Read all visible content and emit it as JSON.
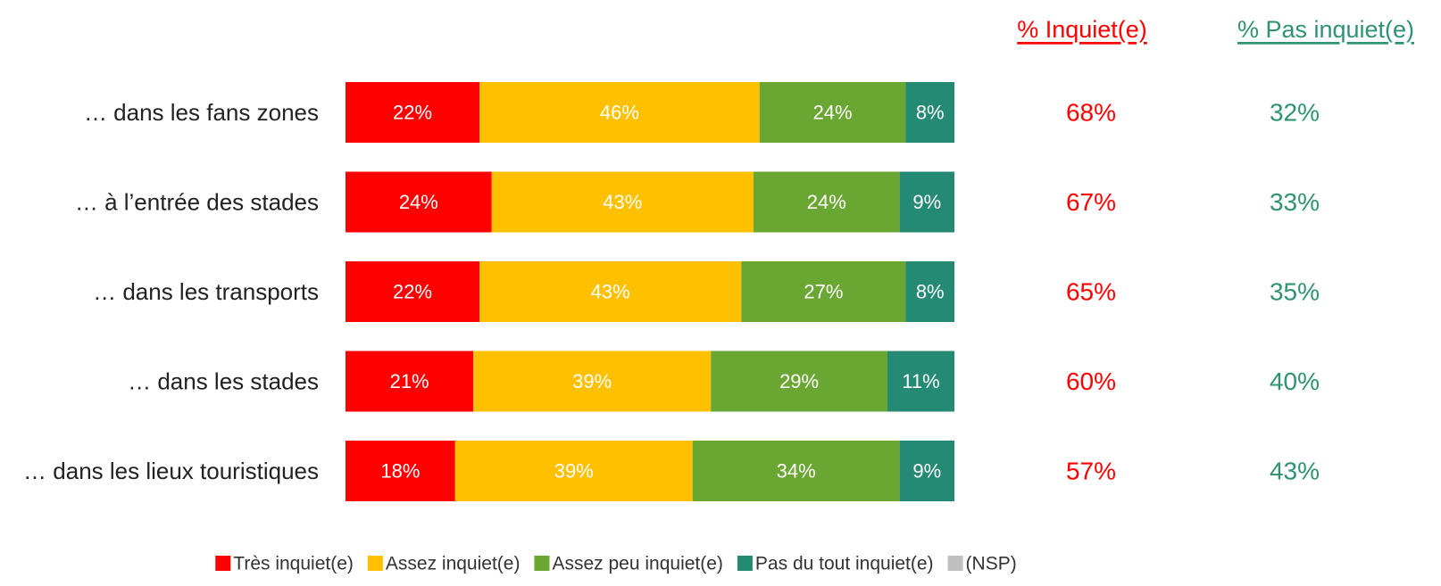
{
  "chart_data": {
    "type": "stacked-barh",
    "categories": [
      "… dans les fans zones",
      "… à l’entrée des stades",
      "… dans les transports",
      "… dans les stades",
      "… dans les lieux touristiques"
    ],
    "xlim": [
      0,
      100
    ],
    "series": [
      {
        "name": "Très inquiet(e)",
        "color": "#ff0000",
        "values": [
          22,
          24,
          22,
          21,
          18
        ],
        "value_labels": [
          "22%",
          "24%",
          "22%",
          "21%",
          "18%"
        ]
      },
      {
        "name": "Assez inquiet(e)",
        "color": "#ffc000",
        "values": [
          46,
          43,
          43,
          39,
          39
        ],
        "value_labels": [
          "46%",
          "43%",
          "43%",
          "39%",
          "39%"
        ]
      },
      {
        "name": "Assez peu inquiet(e)",
        "color": "#6aa632",
        "values": [
          24,
          24,
          27,
          29,
          34
        ],
        "value_labels": [
          "24%",
          "24%",
          "27%",
          "29%",
          "34%"
        ]
      },
      {
        "name": "Pas du tout inquiet(e)",
        "color": "#248a73",
        "values": [
          8,
          9,
          8,
          11,
          9
        ],
        "value_labels": [
          "8%",
          "9%",
          "8%",
          "11%",
          "9%"
        ]
      },
      {
        "name": "(NSP)",
        "color": "#bfbfbf",
        "values": [
          null,
          null,
          null,
          null,
          null
        ]
      }
    ],
    "summary_columns": [
      {
        "name": "% Inquiet(e)",
        "color": "#ff0000",
        "values": [
          68,
          67,
          65,
          60,
          57
        ],
        "value_labels": [
          "68%",
          "67%",
          "65%",
          "60%",
          "57%"
        ]
      },
      {
        "name": "% Pas inquiet(e)",
        "color": "#2e9273",
        "values": [
          32,
          33,
          35,
          40,
          43
        ],
        "value_labels": [
          "32%",
          "33%",
          "35%",
          "40%",
          "43%"
        ]
      }
    ]
  }
}
